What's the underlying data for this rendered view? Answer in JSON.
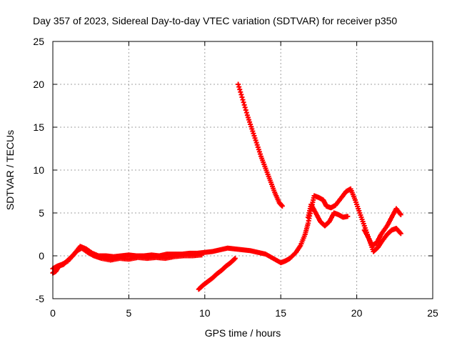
{
  "chart_data": {
    "type": "scatter",
    "title": "Day 357 of 2023, Sidereal Day-to-day VTEC variation (SDTVAR) for receiver p350",
    "xlabel": "GPS time / hours",
    "ylabel": "SDTVAR / TECUs",
    "xlim": [
      0,
      25
    ],
    "ylim": [
      -5,
      25
    ],
    "xticks": [
      0,
      5,
      10,
      15,
      20,
      25
    ],
    "yticks": [
      -5,
      0,
      5,
      10,
      15,
      20,
      25
    ],
    "xtick_labels": [
      "0",
      "5",
      "10",
      "15",
      "20",
      "25"
    ],
    "ytick_labels": [
      "-5",
      "0",
      "5",
      "10",
      "15",
      "20",
      "25"
    ],
    "grid": true,
    "marker": "plus",
    "color": "#ff0000",
    "series": [
      {
        "name": "main-track",
        "x": [
          0.0,
          0.3,
          0.6,
          1.0,
          1.4,
          1.8,
          2.2,
          2.6,
          3.0,
          3.5,
          4.0,
          4.5,
          5.0,
          5.5,
          6.0,
          6.5,
          7.0,
          7.5,
          8.0,
          8.5,
          9.0,
          9.5,
          10.0,
          10.5,
          11.0,
          11.5,
          12.0,
          12.5,
          13.0,
          13.5,
          14.0,
          14.5,
          15.0,
          15.3,
          15.6,
          16.0,
          16.3,
          16.6,
          16.8,
          17.0,
          17.2,
          17.5,
          17.8,
          18.0,
          18.3,
          18.6,
          19.0,
          19.3,
          19.6,
          19.9,
          20.2,
          20.5,
          20.8,
          21.0,
          21.3,
          21.6,
          22.0,
          22.3,
          22.6,
          22.9
        ],
        "y": [
          -1.5,
          -1.2,
          -1.0,
          -0.6,
          0.2,
          1.1,
          0.8,
          0.3,
          0.0,
          0.0,
          -0.1,
          0.0,
          0.1,
          0.0,
          0.0,
          0.1,
          0.0,
          0.2,
          0.2,
          0.2,
          0.3,
          0.3,
          0.4,
          0.5,
          0.7,
          0.9,
          0.8,
          0.7,
          0.6,
          0.4,
          0.2,
          -0.3,
          -0.8,
          -0.6,
          -0.3,
          0.4,
          1.2,
          2.5,
          3.8,
          5.5,
          7.0,
          6.8,
          6.5,
          5.8,
          5.6,
          5.9,
          6.8,
          7.5,
          7.8,
          6.5,
          5.0,
          3.5,
          2.0,
          1.2,
          1.5,
          2.5,
          3.5,
          4.5,
          5.5,
          4.8
        ]
      },
      {
        "name": "secondary-track",
        "x": [
          16.8,
          17.0,
          17.3,
          17.6,
          17.9,
          18.2,
          18.5,
          18.8,
          19.1,
          19.4
        ],
        "y": [
          4.5,
          6.0,
          5.0,
          4.0,
          3.5,
          4.0,
          5.0,
          4.8,
          4.5,
          4.6
        ]
      },
      {
        "name": "lower-branch",
        "x": [
          0.0,
          0.2,
          0.4,
          0.7,
          1.0,
          1.3,
          1.6,
          1.9,
          2.3,
          2.7,
          3.2,
          3.8,
          4.4,
          5.0,
          5.6,
          6.2,
          6.8,
          7.4,
          8.0,
          8.6,
          9.2,
          9.8
        ],
        "y": [
          -2.0,
          -1.8,
          -1.2,
          -1.0,
          -0.5,
          0.0,
          0.6,
          0.9,
          0.4,
          0.0,
          -0.3,
          -0.5,
          -0.3,
          -0.4,
          -0.2,
          -0.3,
          -0.2,
          -0.3,
          -0.1,
          0.0,
          0.0,
          0.1
        ]
      },
      {
        "name": "late-scatter",
        "x": [
          20.5,
          20.8,
          21.1,
          21.4,
          21.7,
          22.0,
          22.3,
          22.6,
          22.9
        ],
        "y": [
          3.0,
          2.0,
          0.5,
          1.0,
          1.8,
          2.5,
          3.0,
          3.2,
          2.6
        ]
      },
      {
        "name": "descending-segment",
        "x": [
          12.2,
          12.5,
          12.8,
          13.1,
          13.4,
          13.7,
          14.0,
          14.3,
          14.6,
          14.9,
          15.1
        ],
        "y": [
          20.0,
          18.2,
          16.4,
          14.8,
          13.2,
          11.6,
          10.2,
          8.8,
          7.4,
          6.2,
          5.8
        ]
      },
      {
        "name": "rising-segment",
        "x": [
          9.6,
          9.9,
          10.2,
          10.5,
          10.8,
          11.1,
          11.4,
          11.7,
          12.0
        ],
        "y": [
          -3.9,
          -3.4,
          -3.0,
          -2.6,
          -2.1,
          -1.7,
          -1.2,
          -0.8,
          -0.3
        ]
      }
    ]
  }
}
